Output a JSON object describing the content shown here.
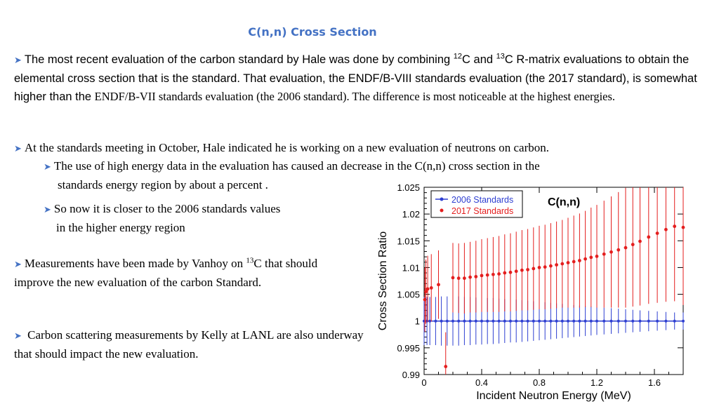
{
  "slide": {
    "title": "C(n,n) Cross Section",
    "p1": {
      "a": "The most recent evaluation of the carbon standard by Hale was done by combining ",
      "sup1": "12",
      "b": "C and ",
      "sup2": "13",
      "c": "C R-matrix evaluations to obtain the elemental cross section that is the standard. That evaluation, the ENDF/B-VIII standards evaluation (the 2017 standard), is somewhat higher than the ",
      "d": "ENDF/B-VII standards evaluation (the 2006 standard). The difference is most noticeable at the highest energies."
    },
    "p2": "At the standards meeting in October, Hale indicated he is working on a new evaluation of neutrons on carbon.",
    "p2a_line1": "The use of high energy data in the evaluation has caused an decrease in the C(n,n) cross section in the",
    "p2a_line2": "standards energy region by about a percent .",
    "p2b_line1": "So now it is closer to the 2006 standards values",
    "p2b_line2": "in the higher energy region",
    "p3": {
      "a": "Measurements have been made by Vanhoy on ",
      "sup": "13",
      "b": "C that should improve the new evaluation of the carbon Standard."
    },
    "p4": "Carbon scattering measurements by Kelly at LANL are also underway that should impact the new evaluation."
  },
  "colors": {
    "title": "#4472c4",
    "series2006": "#2e3fd1",
    "series2017": "#e41e1e",
    "bullet": "#4472c4"
  },
  "chart_data": {
    "type": "scatter",
    "title": "C(n,n)",
    "xlabel": "Incident Neutron Energy (MeV)",
    "ylabel": "Cross Section Ratio",
    "xlim": [
      0,
      1.8
    ],
    "ylim": [
      0.99,
      1.025
    ],
    "xticks": [
      "0",
      "0.4",
      "0.8",
      "1.2",
      "1.6"
    ],
    "yticks": [
      "0.99",
      "0.995",
      "1",
      "1.005",
      "1.01",
      "1.015",
      "1.02",
      "1.025"
    ],
    "legend": [
      "2006 Standards",
      "2017 Standards"
    ],
    "series": [
      {
        "name": "2006 Standards",
        "marker": "line-with-points",
        "x": [
          0.0,
          0.02,
          0.04,
          0.08,
          0.12,
          0.16,
          0.2,
          0.24,
          0.28,
          0.32,
          0.36,
          0.4,
          0.44,
          0.48,
          0.52,
          0.56,
          0.6,
          0.64,
          0.68,
          0.72,
          0.76,
          0.8,
          0.84,
          0.88,
          0.92,
          0.96,
          1.0,
          1.04,
          1.08,
          1.12,
          1.16,
          1.2,
          1.25,
          1.3,
          1.35,
          1.4,
          1.45,
          1.5,
          1.56,
          1.62,
          1.68,
          1.74,
          1.8
        ],
        "y": [
          1.0,
          1.0,
          1.0,
          1.0,
          1.0,
          1.0,
          1.0,
          1.0,
          1.0,
          1.0,
          1.0,
          1.0,
          1.0,
          1.0,
          1.0,
          1.0,
          1.0,
          1.0,
          1.0,
          1.0,
          1.0,
          1.0,
          1.0,
          1.0,
          1.0,
          1.0,
          1.0,
          1.0,
          1.0,
          1.0,
          1.0,
          1.0,
          1.0,
          1.0,
          1.0,
          1.0,
          1.0,
          1.0,
          1.0,
          1.0,
          1.0,
          1.0,
          1.0
        ],
        "err": [
          0.0045,
          0.0045,
          0.0045,
          0.0045,
          0.0046,
          0.0046,
          0.0046,
          0.0046,
          0.0045,
          0.0045,
          0.0044,
          0.0044,
          0.0043,
          0.0043,
          0.0042,
          0.0041,
          0.004,
          0.004,
          0.0039,
          0.0038,
          0.0037,
          0.0036,
          0.0035,
          0.0034,
          0.0033,
          0.0032,
          0.0031,
          0.003,
          0.0029,
          0.0028,
          0.0027,
          0.0026,
          0.0025,
          0.0024,
          0.0023,
          0.0022,
          0.0021,
          0.002,
          0.0019,
          0.0018,
          0.0017,
          0.0016,
          0.0016
        ]
      },
      {
        "name": "2017 Standards",
        "marker": "points",
        "x": [
          0.005,
          0.012,
          0.025,
          0.05,
          0.1,
          0.15,
          0.2,
          0.24,
          0.28,
          0.32,
          0.36,
          0.4,
          0.44,
          0.48,
          0.52,
          0.56,
          0.6,
          0.64,
          0.68,
          0.72,
          0.76,
          0.8,
          0.84,
          0.88,
          0.92,
          0.96,
          1.0,
          1.04,
          1.08,
          1.12,
          1.16,
          1.2,
          1.25,
          1.3,
          1.35,
          1.4,
          1.45,
          1.5,
          1.56,
          1.62,
          1.68,
          1.74,
          1.8
        ],
        "y": [
          1.004,
          1.0055,
          1.006,
          1.0062,
          1.0068,
          0.9915,
          1.0081,
          1.008,
          1.008,
          1.0082,
          1.0083,
          1.0085,
          1.0086,
          1.0087,
          1.0088,
          1.009,
          1.0091,
          1.0093,
          1.0095,
          1.0096,
          1.0098,
          1.01,
          1.0101,
          1.0103,
          1.0105,
          1.0107,
          1.0109,
          1.0111,
          1.0113,
          1.0116,
          1.0119,
          1.0121,
          1.0125,
          1.0129,
          1.0133,
          1.0137,
          1.0143,
          1.0149,
          1.0157,
          1.0164,
          1.0171,
          1.0177,
          1.0175
        ],
        "err": [
          0.006,
          0.006,
          0.0062,
          0.0063,
          0.0064,
          0.0064,
          0.0065,
          0.0065,
          0.0066,
          0.0066,
          0.0067,
          0.0068,
          0.0069,
          0.007,
          0.0071,
          0.0072,
          0.0073,
          0.0074,
          0.0075,
          0.0076,
          0.0077,
          0.0078,
          0.0079,
          0.008,
          0.0081,
          0.0082,
          0.0084,
          0.0086,
          0.0088,
          0.009,
          0.0093,
          0.0096,
          0.01,
          0.0104,
          0.0108,
          0.0112,
          0.0116,
          0.012,
          0.0125,
          0.013,
          0.0135,
          0.014,
          0.0145
        ]
      }
    ]
  }
}
